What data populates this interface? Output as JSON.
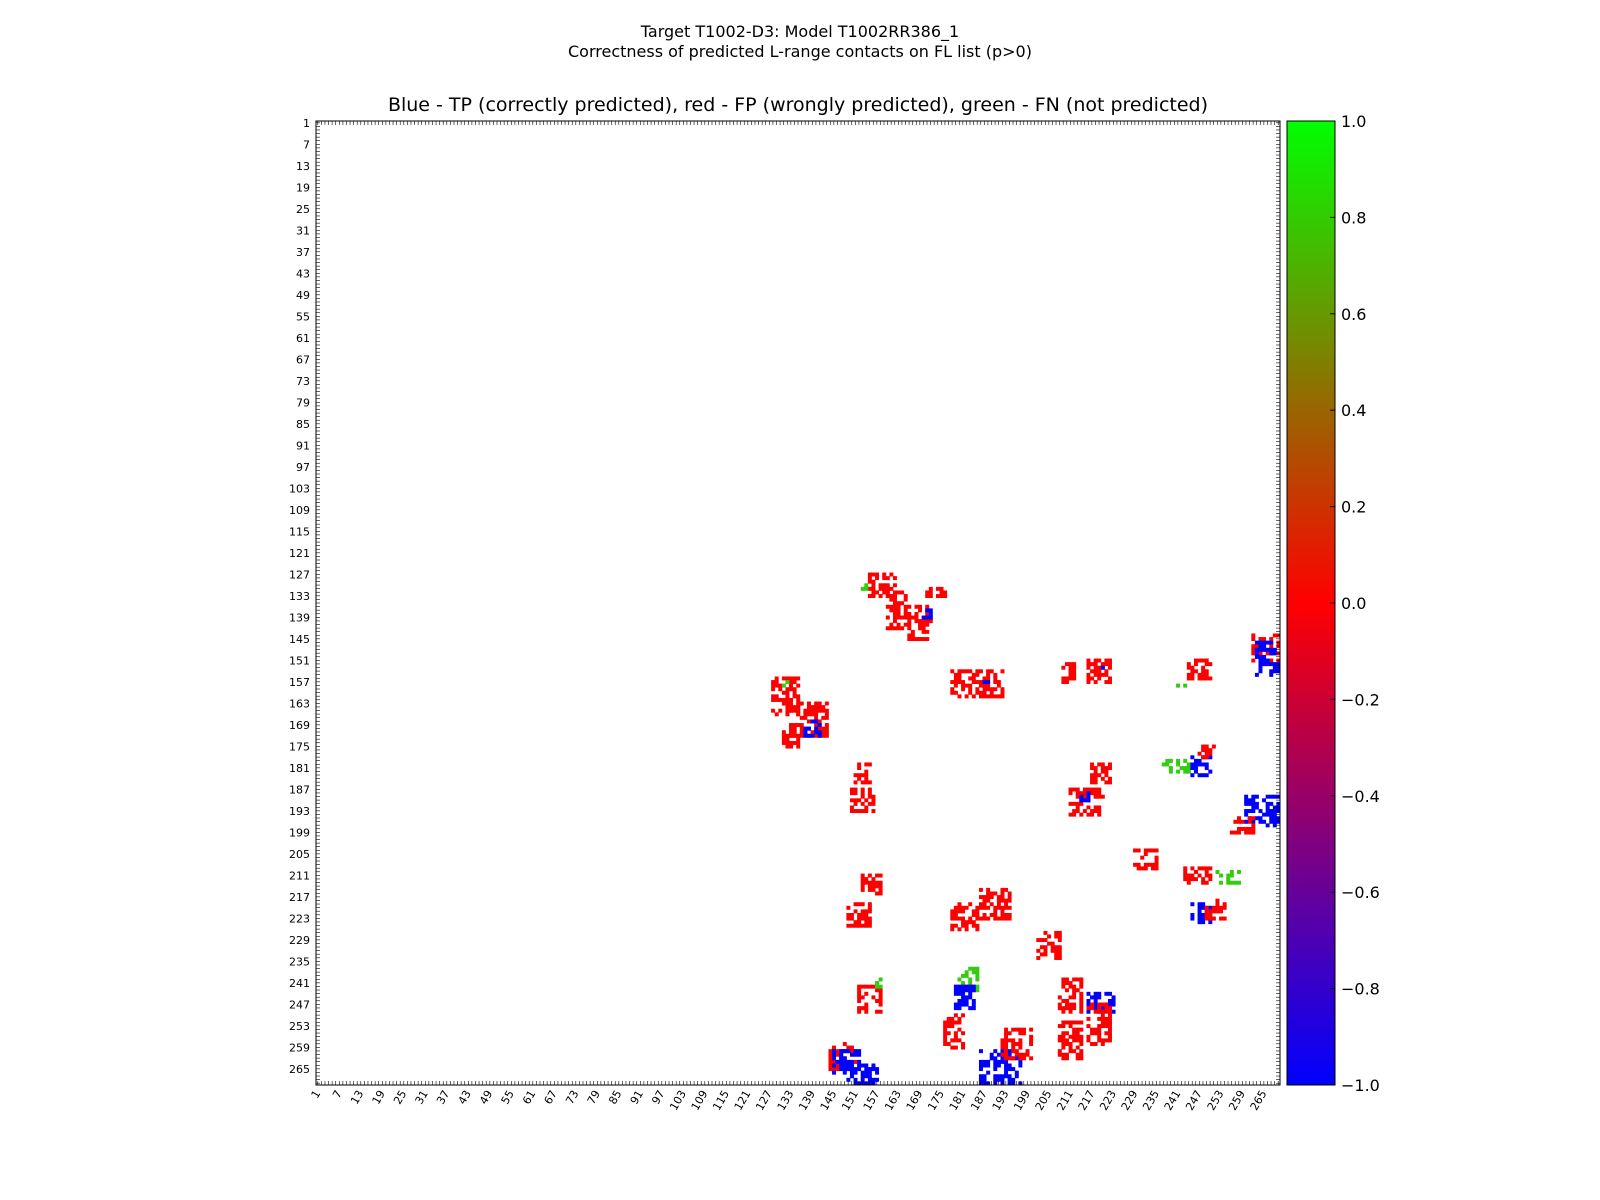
{
  "chart_data": {
    "type": "heatmap",
    "suptitle_line1": "Target T1002-D3: Model T1002RR386_1",
    "suptitle_line2": "Correctness of predicted L-range contacts on FL list (p>0)",
    "title": "Blue - TP (correctly predicted), red - FP (wrongly predicted), green - FN (not predicted)",
    "xlabel": "",
    "ylabel": "",
    "n_residues": 269,
    "tick_labels": [
      "1",
      "7",
      "13",
      "19",
      "25",
      "31",
      "37",
      "43",
      "49",
      "55",
      "61",
      "67",
      "73",
      "79",
      "85",
      "91",
      "97",
      "103",
      "109",
      "115",
      "121",
      "127",
      "133",
      "139",
      "145",
      "151",
      "157",
      "163",
      "169",
      "175",
      "181",
      "187",
      "193",
      "199",
      "205",
      "211",
      "217",
      "223",
      "229",
      "235",
      "241",
      "247",
      "253",
      "259",
      "265"
    ],
    "colorbar": {
      "range": [
        -1.0,
        1.0
      ],
      "ticks": [
        "1.0",
        "0.8",
        "0.6",
        "0.4",
        "0.2",
        "0.0",
        "−0.2",
        "−0.4",
        "−0.6",
        "−0.8",
        "−1.0"
      ],
      "tick_values": [
        1.0,
        0.8,
        0.6,
        0.4,
        0.2,
        0.0,
        -0.2,
        -0.4,
        -0.6,
        -0.8,
        -1.0
      ],
      "colors": {
        "min": "#0000ff",
        "mid": "#ff0000",
        "max": "#00ff00"
      }
    },
    "class_colors": {
      "TP": "#0000ff",
      "FP": "#ff0000",
      "FN": "#33cc11"
    },
    "clusters": [
      {
        "class": "FP",
        "x": [
          155,
          162
        ],
        "y": [
          127,
          133
        ]
      },
      {
        "class": "FP",
        "x": [
          160,
          165
        ],
        "y": [
          132,
          142
        ]
      },
      {
        "class": "FP",
        "x": [
          166,
          172
        ],
        "y": [
          136,
          145
        ]
      },
      {
        "class": "TP",
        "x": [
          170,
          172
        ],
        "y": [
          137,
          139
        ]
      },
      {
        "class": "FN",
        "x": [
          153,
          154
        ],
        "y": [
          130,
          131
        ]
      },
      {
        "class": "FP",
        "x": [
          171,
          176
        ],
        "y": [
          131,
          133
        ]
      },
      {
        "class": "FP",
        "x": [
          128,
          135
        ],
        "y": [
          156,
          166
        ]
      },
      {
        "class": "FP",
        "x": [
          133,
          143
        ],
        "y": [
          163,
          172
        ]
      },
      {
        "class": "TP",
        "x": [
          137,
          141
        ],
        "y": [
          168,
          172
        ]
      },
      {
        "class": "FP",
        "x": [
          131,
          135
        ],
        "y": [
          170,
          175
        ]
      },
      {
        "class": "FN",
        "x": [
          131,
          132
        ],
        "y": [
          157,
          158
        ]
      },
      {
        "class": "FP",
        "x": [
          178,
          192
        ],
        "y": [
          154,
          161
        ]
      },
      {
        "class": "TP",
        "x": [
          187,
          188
        ],
        "y": [
          155,
          157
        ]
      },
      {
        "class": "FP",
        "x": [
          209,
          213
        ],
        "y": [
          152,
          157
        ]
      },
      {
        "class": "FP",
        "x": [
          216,
          222
        ],
        "y": [
          151,
          157
        ]
      },
      {
        "class": "TP",
        "x": [
          219,
          220
        ],
        "y": [
          152,
          153
        ]
      },
      {
        "class": "FP",
        "x": [
          244,
          250
        ],
        "y": [
          151,
          156
        ]
      },
      {
        "class": "FN",
        "x": [
          240,
          243
        ],
        "y": [
          158,
          158
        ]
      },
      {
        "class": "FP",
        "x": [
          262,
          269
        ],
        "y": [
          144,
          151
        ]
      },
      {
        "class": "TP",
        "x": [
          263,
          269
        ],
        "y": [
          146,
          155
        ]
      },
      {
        "class": "FP",
        "x": [
          151,
          155
        ],
        "y": [
          180,
          185
        ]
      },
      {
        "class": "FP",
        "x": [
          150,
          156
        ],
        "y": [
          187,
          193
        ]
      },
      {
        "class": "FP",
        "x": [
          217,
          222
        ],
        "y": [
          180,
          185
        ]
      },
      {
        "class": "FP",
        "x": [
          211,
          220
        ],
        "y": [
          187,
          194
        ]
      },
      {
        "class": "TP",
        "x": [
          214,
          216
        ],
        "y": [
          188,
          190
        ]
      },
      {
        "class": "FN",
        "x": [
          237,
          244
        ],
        "y": [
          179,
          182
        ]
      },
      {
        "class": "TP",
        "x": [
          245,
          250
        ],
        "y": [
          178,
          183
        ]
      },
      {
        "class": "FP",
        "x": [
          247,
          251
        ],
        "y": [
          175,
          178
        ]
      },
      {
        "class": "TP",
        "x": [
          260,
          269
        ],
        "y": [
          189,
          197
        ]
      },
      {
        "class": "FP",
        "x": [
          256,
          262
        ],
        "y": [
          195,
          199
        ]
      },
      {
        "class": "FP",
        "x": [
          229,
          235
        ],
        "y": [
          204,
          209
        ]
      },
      {
        "class": "FP",
        "x": [
          243,
          250
        ],
        "y": [
          209,
          213
        ]
      },
      {
        "class": "FN",
        "x": [
          252,
          258
        ],
        "y": [
          210,
          213
        ]
      },
      {
        "class": "FP",
        "x": [
          153,
          158
        ],
        "y": [
          211,
          216
        ]
      },
      {
        "class": "FP",
        "x": [
          149,
          155
        ],
        "y": [
          219,
          225
        ]
      },
      {
        "class": "FP",
        "x": [
          178,
          185
        ],
        "y": [
          219,
          226
        ]
      },
      {
        "class": "FP",
        "x": [
          186,
          194
        ],
        "y": [
          215,
          223
        ]
      },
      {
        "class": "TP",
        "x": [
          245,
          250
        ],
        "y": [
          219,
          224
        ]
      },
      {
        "class": "FP",
        "x": [
          249,
          254
        ],
        "y": [
          218,
          223
        ]
      },
      {
        "class": "FP",
        "x": [
          202,
          208
        ],
        "y": [
          227,
          234
        ]
      },
      {
        "class": "FN",
        "x": [
          180,
          185
        ],
        "y": [
          237,
          243
        ]
      },
      {
        "class": "TP",
        "x": [
          179,
          184
        ],
        "y": [
          242,
          248
        ]
      },
      {
        "class": "FP",
        "x": [
          152,
          158
        ],
        "y": [
          242,
          249
        ]
      },
      {
        "class": "FP",
        "x": [
          208,
          214
        ],
        "y": [
          240,
          249
        ]
      },
      {
        "class": "TP",
        "x": [
          216,
          223
        ],
        "y": [
          244,
          249
        ]
      },
      {
        "class": "FP",
        "x": [
          216,
          222
        ],
        "y": [
          247,
          258
        ]
      },
      {
        "class": "FP",
        "x": [
          144,
          151
        ],
        "y": [
          258,
          265
        ]
      },
      {
        "class": "TP",
        "x": [
          145,
          152
        ],
        "y": [
          260,
          266
        ]
      },
      {
        "class": "TP",
        "x": [
          149,
          157
        ],
        "y": [
          264,
          269
        ]
      },
      {
        "class": "TP",
        "x": [
          186,
          197
        ],
        "y": [
          260,
          269
        ]
      },
      {
        "class": "FP",
        "x": [
          192,
          200
        ],
        "y": [
          254,
          262
        ]
      },
      {
        "class": "FP",
        "x": [
          176,
          181
        ],
        "y": [
          250,
          259
        ]
      },
      {
        "class": "FP",
        "x": [
          208,
          214
        ],
        "y": [
          252,
          262
        ]
      },
      {
        "class": "FN",
        "x": [
          157,
          158
        ],
        "y": [
          239,
          242
        ]
      }
    ]
  }
}
